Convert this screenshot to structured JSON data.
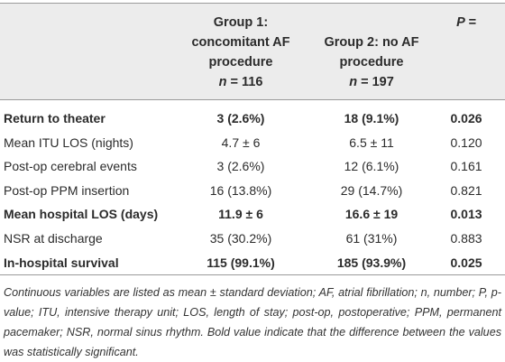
{
  "table": {
    "header": {
      "columns": [
        {
          "lines": [
            "Group 1:",
            "concomitant AF",
            "procedure"
          ],
          "n_label": "n",
          "n_value": "= 116"
        },
        {
          "lines": [
            "Group 2: no AF",
            "procedure"
          ],
          "n_label": "n",
          "n_value": "= 197"
        }
      ],
      "p_label": "P =",
      "empty": null
    },
    "rows": [
      {
        "bold": true,
        "cells": [
          "Return to theater",
          "3 (2.6%)",
          "18 (9.1%)",
          "0.026"
        ]
      },
      {
        "bold": false,
        "cells": [
          "Mean ITU LOS (nights)",
          "4.7 ± 6",
          "6.5 ± 11",
          "0.120"
        ]
      },
      {
        "bold": false,
        "cells": [
          "Post-op cerebral events",
          "3 (2.6%)",
          "12 (6.1%)",
          "0.161"
        ]
      },
      {
        "bold": false,
        "cells": [
          "Post-op PPM insertion",
          "16 (13.8%)",
          "29 (14.7%)",
          "0.821"
        ]
      },
      {
        "bold": true,
        "cells": [
          "Mean hospital LOS (days)",
          "11.9 ± 6",
          "16.6 ± 19",
          "0.013"
        ]
      },
      {
        "bold": false,
        "cells": [
          "NSR at discharge",
          "35 (30.2%)",
          "61 (31%)",
          "0.883"
        ]
      },
      {
        "bold": true,
        "cells": [
          "In-hospital survival",
          "115 (99.1%)",
          "185 (93.9%)",
          "0.025"
        ]
      }
    ],
    "footnote": "Continuous variables are listed as mean ± standard deviation; AF, atrial fibrillation; n, number; P, p-value; ITU, intensive therapy unit; LOS, length of stay; post-op, postoperative; PPM, permanent pacemaker; NSR, normal sinus rhythm. Bold value indicate that the difference between the values was statistically significant."
  }
}
